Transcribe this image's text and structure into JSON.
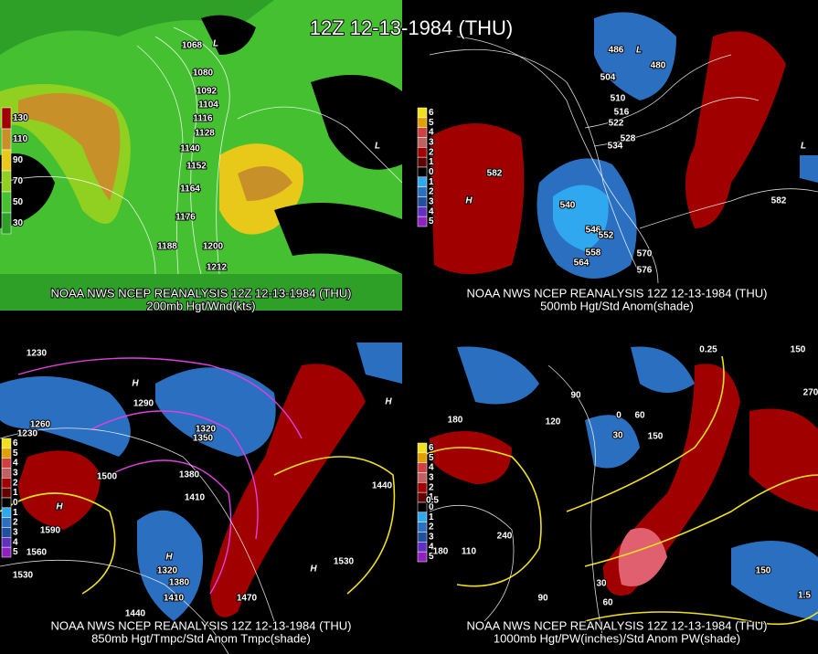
{
  "title": "12Z 12-13-1984 (THU)",
  "panels": [
    {
      "caption": "NOAA NWS NCEP REANALYSIS 12Z 12-13-1984 (THU)",
      "subtitle": "200mb Hgt/Wnd(kts)",
      "legend": [
        "130",
        "110",
        "90",
        "70",
        "50",
        "30"
      ],
      "labels": [
        "1068",
        "1080",
        "1092",
        "1104",
        "1116",
        "1128",
        "1140",
        "1152",
        "1164",
        "1176",
        "1188",
        "1200",
        "1212",
        "L",
        "L"
      ]
    },
    {
      "caption": "NOAA NWS NCEP REANALYSIS 12Z 12-13-1984 (THU)",
      "subtitle": "500mb Hgt/Std Anom(shade)",
      "legend": [
        "6",
        "5",
        "4",
        "3",
        "2",
        "1",
        "0",
        "1",
        "2",
        "3",
        "4",
        "5"
      ],
      "labels": [
        "486",
        "480",
        "504",
        "510",
        "516",
        "522",
        "528",
        "534",
        "582",
        "540",
        "546",
        "552",
        "558",
        "564",
        "570",
        "576",
        "582",
        "H",
        "L",
        "L"
      ]
    },
    {
      "caption": "NOAA NWS NCEP REANALYSIS 12Z 12-13-1984 (THU)",
      "subtitle": "850mb Hgt/Tmpc/Std Anom Tmpc(shade)",
      "legend": [
        "6",
        "5",
        "4",
        "3",
        "2",
        "1",
        "0",
        "1",
        "2",
        "3",
        "4",
        "5"
      ],
      "labels": [
        "1230",
        "1290",
        "1260",
        "1230",
        "1320",
        "1350",
        "1380",
        "1410",
        "1500",
        "1590",
        "1560",
        "1530",
        "1440",
        "1470",
        "1530",
        "1440",
        "1320",
        "1380",
        "1410",
        "H",
        "H",
        "H",
        "H",
        "H"
      ]
    },
    {
      "caption": "NOAA NWS NCEP REANALYSIS 12Z 12-13-1984 (THU)",
      "subtitle": "1000mb Hgt/PW(inches)/Std Anom PW(shade)",
      "legend": [
        "6",
        "5",
        "4",
        "3",
        "2",
        "1",
        "0",
        "1",
        "2",
        "3",
        "4",
        "5"
      ],
      "labels": [
        "180",
        "90",
        "120",
        "150",
        "60",
        "0",
        "30",
        "240",
        "180",
        "110",
        "90",
        "60",
        "0.25",
        "0.5",
        "1.5",
        "30",
        "150",
        "270",
        "150"
      ]
    }
  ]
}
